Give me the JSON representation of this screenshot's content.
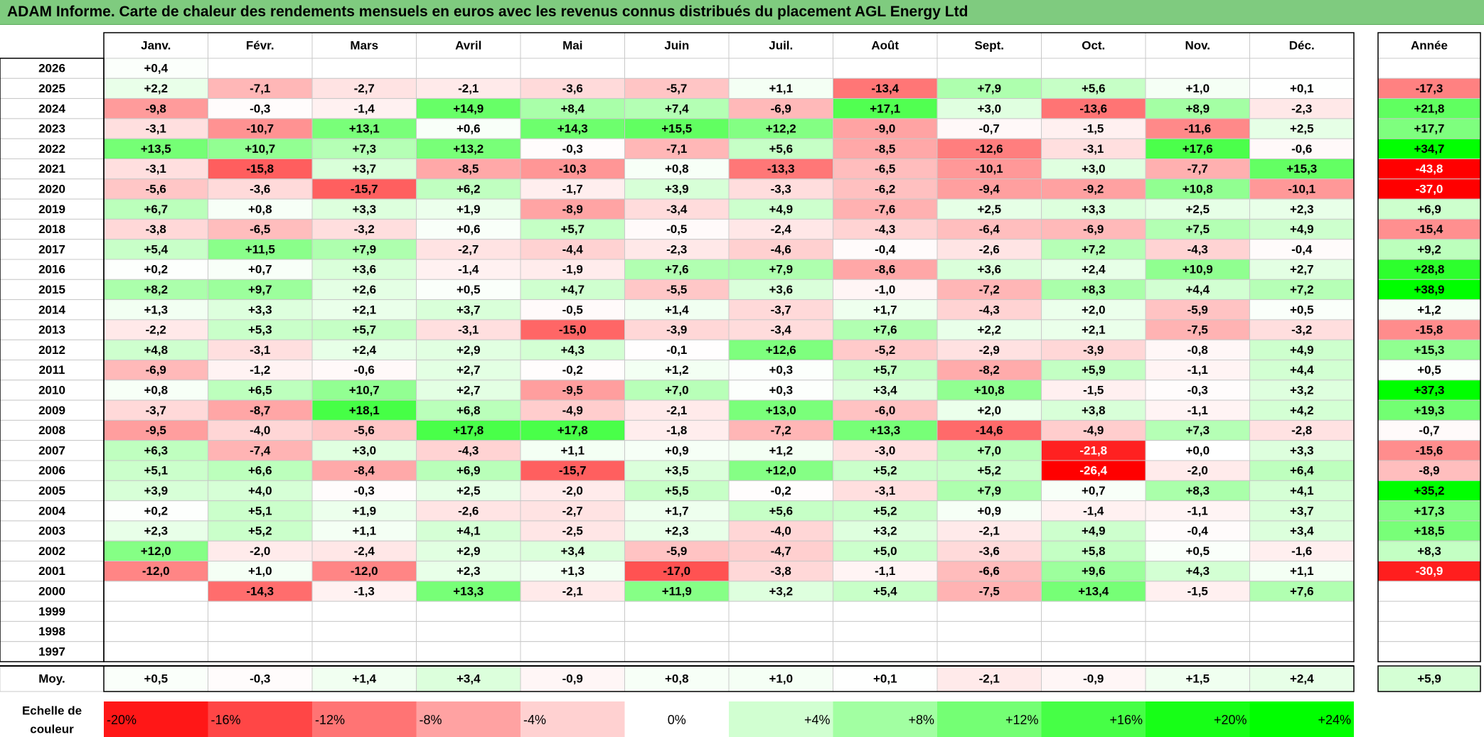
{
  "title": "ADAM Informe. Carte de chaleur des rendements mensuels en euros avec les revenus connus distribués du placement AGL Energy Ltd",
  "chart_data": {
    "type": "heatmap",
    "months": [
      "Janv.",
      "Févr.",
      "Mars",
      "Avril",
      "Mai",
      "Juin",
      "Juil.",
      "Août",
      "Sept.",
      "Oct.",
      "Nov.",
      "Déc."
    ],
    "year_label": "Année",
    "rows": [
      {
        "year": "2026",
        "values": [
          0.4,
          null,
          null,
          null,
          null,
          null,
          null,
          null,
          null,
          null,
          null,
          null
        ],
        "annual": null
      },
      {
        "year": "2025",
        "values": [
          2.2,
          -7.1,
          -2.7,
          -2.1,
          -3.6,
          -5.7,
          1.1,
          -13.4,
          7.9,
          5.6,
          1.0,
          0.1
        ],
        "annual": -17.3
      },
      {
        "year": "2024",
        "values": [
          -9.8,
          -0.3,
          -1.4,
          14.9,
          8.4,
          7.4,
          -6.9,
          17.1,
          3.0,
          -13.6,
          8.9,
          -2.3
        ],
        "annual": 21.8
      },
      {
        "year": "2023",
        "values": [
          -3.1,
          -10.7,
          13.1,
          0.6,
          14.3,
          15.5,
          12.2,
          -9.0,
          -0.7,
          -1.5,
          -11.6,
          2.5
        ],
        "annual": 17.7
      },
      {
        "year": "2022",
        "values": [
          13.5,
          10.7,
          7.3,
          13.2,
          -0.3,
          -7.1,
          5.6,
          -8.5,
          -12.6,
          -3.1,
          17.6,
          -0.6
        ],
        "annual": 34.7
      },
      {
        "year": "2021",
        "values": [
          -3.1,
          -15.8,
          3.7,
          -8.5,
          -10.3,
          0.8,
          -13.3,
          -6.5,
          -10.1,
          3.0,
          -7.7,
          15.3
        ],
        "annual": -43.8
      },
      {
        "year": "2020",
        "values": [
          -5.6,
          -3.6,
          -15.7,
          6.2,
          -1.7,
          3.9,
          -3.3,
          -6.2,
          -9.4,
          -9.2,
          10.8,
          -10.1
        ],
        "annual": -37.0
      },
      {
        "year": "2019",
        "values": [
          6.7,
          0.8,
          3.3,
          1.9,
          -8.9,
          -3.4,
          4.9,
          -7.6,
          2.5,
          3.3,
          2.5,
          2.3
        ],
        "annual": 6.9
      },
      {
        "year": "2018",
        "values": [
          -3.8,
          -6.5,
          -3.2,
          0.6,
          5.7,
          -0.5,
          -2.4,
          -4.3,
          -6.4,
          -6.9,
          7.5,
          4.9
        ],
        "annual": -15.4
      },
      {
        "year": "2017",
        "values": [
          5.4,
          11.5,
          7.9,
          -2.7,
          -4.4,
          -2.3,
          -4.6,
          -0.4,
          -2.6,
          7.2,
          -4.3,
          -0.4
        ],
        "annual": 9.2
      },
      {
        "year": "2016",
        "values": [
          0.2,
          0.7,
          3.6,
          -1.4,
          -1.9,
          7.6,
          7.9,
          -8.6,
          3.6,
          2.4,
          10.9,
          2.7
        ],
        "annual": 28.8
      },
      {
        "year": "2015",
        "values": [
          8.2,
          9.7,
          2.6,
          0.5,
          4.7,
          -5.5,
          3.6,
          -1.0,
          -7.2,
          8.3,
          4.4,
          7.2
        ],
        "annual": 38.9
      },
      {
        "year": "2014",
        "values": [
          1.3,
          3.3,
          2.1,
          3.7,
          -0.5,
          1.4,
          -3.7,
          1.7,
          -4.3,
          2.0,
          -5.9,
          0.5
        ],
        "annual": 1.2
      },
      {
        "year": "2013",
        "values": [
          -2.2,
          5.3,
          5.7,
          -3.1,
          -15.0,
          -3.9,
          -3.4,
          7.6,
          2.2,
          2.1,
          -7.5,
          -3.2
        ],
        "annual": -15.8
      },
      {
        "year": "2012",
        "values": [
          4.8,
          -3.1,
          2.4,
          2.9,
          4.3,
          -0.1,
          12.6,
          -5.2,
          -2.9,
          -3.9,
          -0.8,
          4.9
        ],
        "annual": 15.3
      },
      {
        "year": "2011",
        "values": [
          -6.9,
          -1.2,
          -0.6,
          2.7,
          -0.2,
          1.2,
          0.3,
          5.7,
          -8.2,
          5.9,
          -1.1,
          4.4
        ],
        "annual": 0.5
      },
      {
        "year": "2010",
        "values": [
          0.8,
          6.5,
          10.7,
          2.7,
          -9.5,
          7.0,
          0.3,
          3.4,
          10.8,
          -1.5,
          -0.3,
          3.2
        ],
        "annual": 37.3
      },
      {
        "year": "2009",
        "values": [
          -3.7,
          -8.7,
          18.1,
          6.8,
          -4.9,
          -2.1,
          13.0,
          -6.0,
          2.0,
          3.8,
          -1.1,
          4.2
        ],
        "annual": 19.3
      },
      {
        "year": "2008",
        "values": [
          -9.5,
          -4.0,
          -5.6,
          17.8,
          17.8,
          -1.8,
          -7.2,
          13.3,
          -14.6,
          -4.9,
          7.3,
          -2.8
        ],
        "annual": -0.7
      },
      {
        "year": "2007",
        "values": [
          6.3,
          -7.4,
          3.0,
          -4.3,
          1.1,
          0.9,
          1.2,
          -3.0,
          7.0,
          -21.8,
          0.0,
          3.3
        ],
        "annual": -15.6
      },
      {
        "year": "2006",
        "values": [
          5.1,
          6.6,
          -8.4,
          6.9,
          -15.7,
          3.5,
          12.0,
          5.2,
          5.2,
          -26.4,
          -2.0,
          6.4
        ],
        "annual": -8.9
      },
      {
        "year": "2005",
        "values": [
          3.9,
          4.0,
          -0.3,
          2.5,
          -2.0,
          5.5,
          -0.2,
          -3.1,
          7.9,
          0.7,
          8.3,
          4.1
        ],
        "annual": 35.2
      },
      {
        "year": "2004",
        "values": [
          0.2,
          5.1,
          1.9,
          -2.6,
          -2.7,
          1.7,
          5.6,
          5.2,
          0.9,
          -1.4,
          -1.1,
          3.7
        ],
        "annual": 17.3
      },
      {
        "year": "2003",
        "values": [
          2.3,
          5.2,
          1.1,
          4.1,
          -2.5,
          2.3,
          -4.0,
          3.2,
          -2.1,
          4.9,
          -0.4,
          3.4
        ],
        "annual": 18.5
      },
      {
        "year": "2002",
        "values": [
          12.0,
          -2.0,
          -2.4,
          2.9,
          3.4,
          -5.9,
          -4.7,
          5.0,
          -3.6,
          5.8,
          0.5,
          -1.6
        ],
        "annual": 8.3
      },
      {
        "year": "2001",
        "values": [
          -12.0,
          1.0,
          -12.0,
          2.3,
          1.3,
          -17.0,
          -3.8,
          -1.1,
          -6.6,
          9.6,
          4.3,
          1.1
        ],
        "annual": -30.9
      },
      {
        "year": "2000",
        "values": [
          null,
          -14.3,
          -1.3,
          13.3,
          -2.1,
          11.9,
          3.2,
          5.4,
          -7.5,
          13.4,
          -1.5,
          7.6
        ],
        "annual": null
      },
      {
        "year": "1999",
        "values": [
          null,
          null,
          null,
          null,
          null,
          null,
          null,
          null,
          null,
          null,
          null,
          null
        ],
        "annual": null
      },
      {
        "year": "1998",
        "values": [
          null,
          null,
          null,
          null,
          null,
          null,
          null,
          null,
          null,
          null,
          null,
          null
        ],
        "annual": null
      },
      {
        "year": "1997",
        "values": [
          null,
          null,
          null,
          null,
          null,
          null,
          null,
          null,
          null,
          null,
          null,
          null
        ],
        "annual": null
      }
    ],
    "average": {
      "label": "Moy.",
      "values": [
        0.5,
        -0.3,
        1.4,
        3.4,
        -0.9,
        0.8,
        1.0,
        0.1,
        -2.1,
        -0.9,
        1.5,
        2.4
      ],
      "annual": 5.9
    },
    "scale": {
      "label_line1": "Echelle de",
      "label_line2": "couleur",
      "steps": [
        {
          "text": "-20%",
          "value": -20
        },
        {
          "text": "-16%",
          "value": -16
        },
        {
          "text": "-12%",
          "value": -12
        },
        {
          "text": "-8%",
          "value": -8
        },
        {
          "text": "-4%",
          "value": -4
        },
        {
          "text": "0%",
          "value": 0
        },
        {
          "text": "+4%",
          "value": 4
        },
        {
          "text": "+8%",
          "value": 8
        },
        {
          "text": "+12%",
          "value": 12
        },
        {
          "text": "+16%",
          "value": 16
        },
        {
          "text": "+20%",
          "value": 20
        },
        {
          "text": "+24%",
          "value": 24
        }
      ]
    },
    "colors": {
      "negative": "#ff0000",
      "positive": "#00ff00",
      "neutral": "#ffffff"
    }
  }
}
